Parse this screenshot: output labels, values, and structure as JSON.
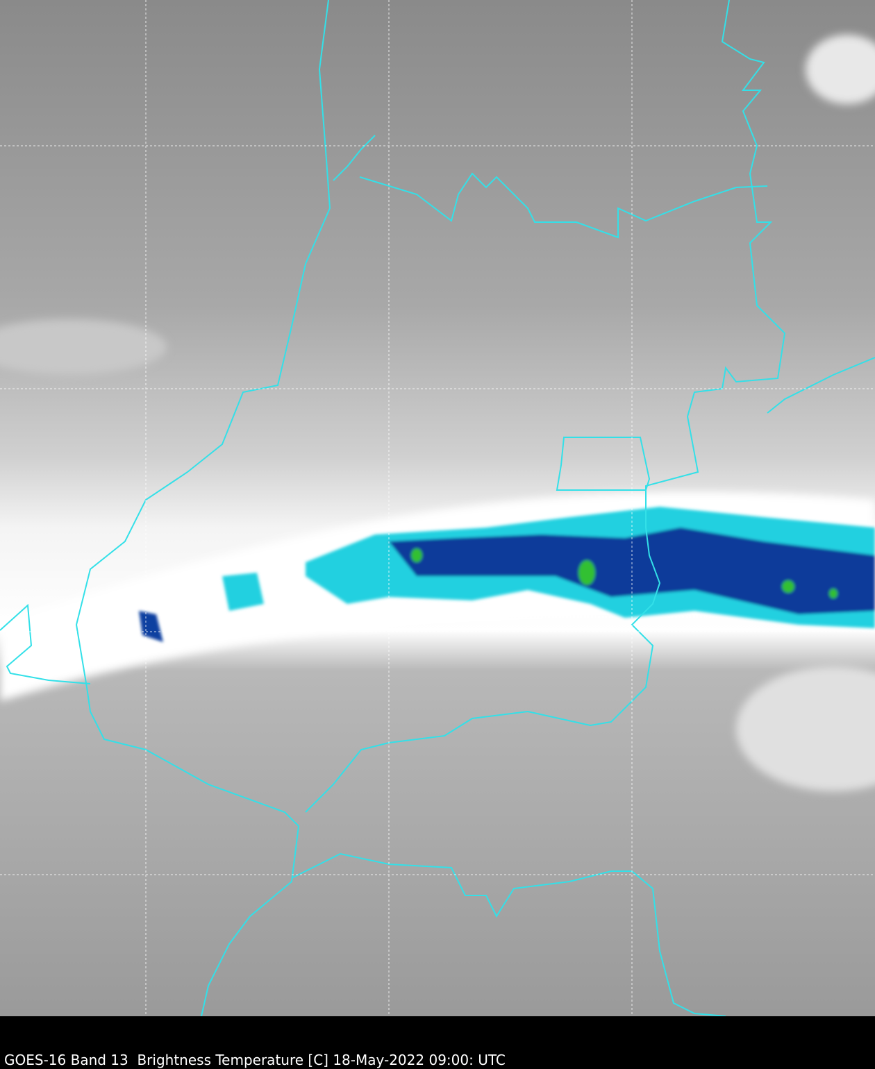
{
  "caption": "GOES-16 Band 13  Brightness Temperature [C] 18-May-2022 09:00: UTC"
}
